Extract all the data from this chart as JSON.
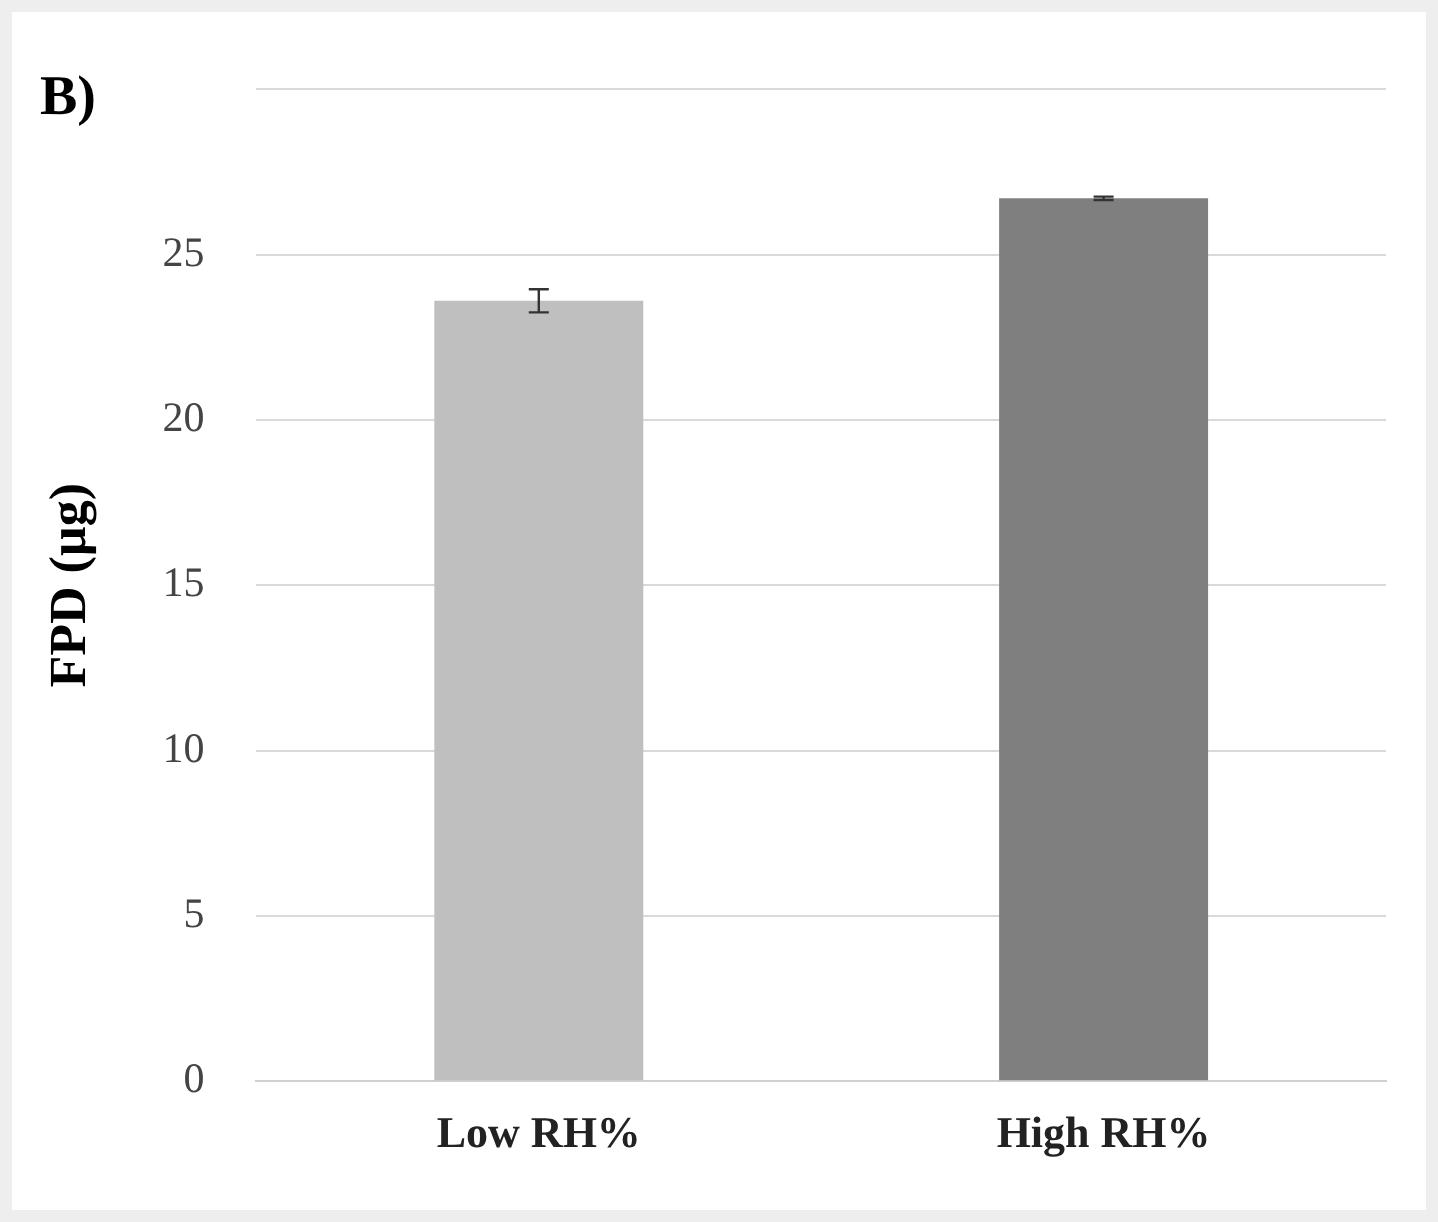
{
  "chart_data": {
    "type": "bar",
    "ylabel": "FPD (µg)",
    "annotations": [
      "B)"
    ],
    "categories": [
      "Low RH%",
      "High RH%"
    ],
    "values": [
      23.6,
      26.7
    ],
    "errors": [
      0.35,
      0.05
    ],
    "colors": [
      "#bfbfbf",
      "#7f7f7f"
    ],
    "ylim": [
      0,
      30
    ],
    "yticks": [
      0,
      5,
      10,
      15,
      20,
      25,
      {
        "value": 30,
        "label": null
      }
    ],
    "grid": "y",
    "legend": false
  }
}
